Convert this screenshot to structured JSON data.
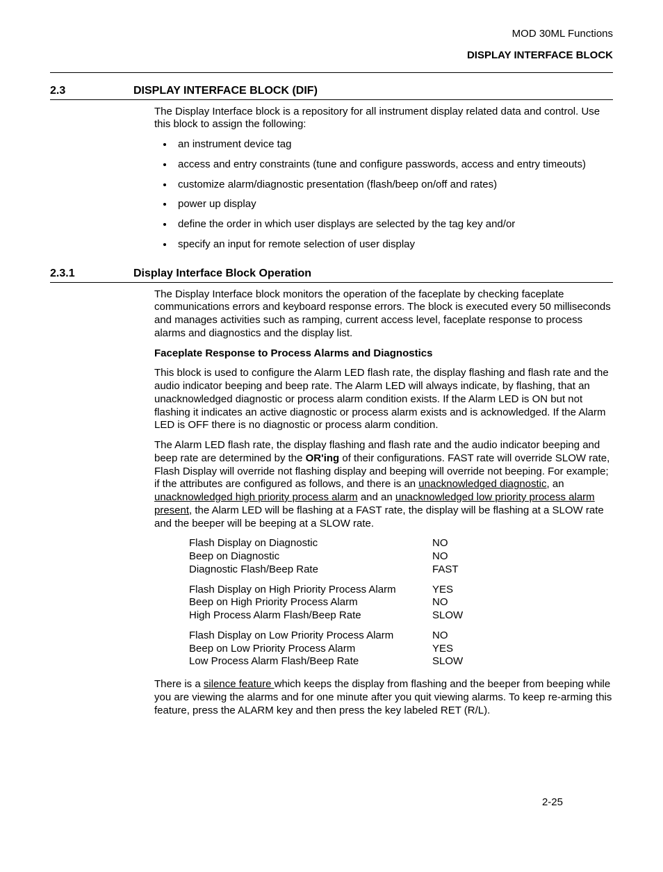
{
  "header": {
    "doc_title": "MOD 30ML Functions",
    "block_title": "DISPLAY INTERFACE BLOCK"
  },
  "section23": {
    "num": "2.3",
    "title": "DISPLAY INTERFACE BLOCK (DIF)",
    "intro": "The Display Interface block is a repository for all instrument display related data and control. Use this block to assign the following:",
    "bullets": [
      "an instrument device tag",
      "access and entry constraints (tune and configure passwords, access and entry timeouts)",
      "customize alarm/diagnostic presentation (flash/beep on/off and rates)",
      "power up display",
      "define the order in which user displays are selected by the tag key and/or",
      "specify an input for remote selection of user display"
    ]
  },
  "section231": {
    "num": "2.3.1",
    "title": "Display Interface Block Operation",
    "para1": "The Display Interface block monitors the operation of the faceplate by checking faceplate communications errors and keyboard response errors. The block is executed every 50 milliseconds and manages activities such as ramping, current access level, faceplate response to process alarms and diagnostics and the display list.",
    "sub1_title": "Faceplate Response to Process Alarms and Diagnostics",
    "sub1_p1": "This block is used to configure the Alarm LED flash rate, the display flashing and flash rate and the audio indicator beeping and beep rate. The Alarm LED will always indicate, by flashing, that an unacknowledged diagnostic or process alarm condition exists.  If the Alarm LED is ON but not flashing it indicates an active diagnostic or process alarm exists and is acknowledged. If the Alarm LED is OFF there is no diagnostic or process alarm condition.",
    "sub1_p2_a": "The Alarm LED flash rate, the display flashing and flash rate and the audio indicator beeping and beep rate are determined by the ",
    "sub1_p2_bold": "OR'ing",
    "sub1_p2_b": " of their configurations.  FAST rate will override SLOW rate, Flash Display will override not flashing display and beeping will override not beeping. For example; if the attributes are configured as follows, and there is an ",
    "sub1_p2_u1": "unacknowledged diagnostic",
    "sub1_p2_c": ", an ",
    "sub1_p2_u2": "unacknowledged high priority process alarm",
    "sub1_p2_d": " and an ",
    "sub1_p2_u3": "unacknowledged low priority process alarm present",
    "sub1_p2_e": ", the Alarm LED will be flashing at a FAST rate, the display will be flashing at a SLOW rate and the beeper will be beeping at a SLOW rate.",
    "config": [
      [
        {
          "label": "Flash Display on Diagnostic",
          "value": "NO"
        },
        {
          "label": "Beep on Diagnostic",
          "value": "NO"
        },
        {
          "label": "Diagnostic Flash/Beep Rate",
          "value": "FAST"
        }
      ],
      [
        {
          "label": "Flash Display on High Priority Process Alarm",
          "value": "YES"
        },
        {
          "label": "Beep on High Priority Process Alarm",
          "value": "NO"
        },
        {
          "label": "High Process Alarm Flash/Beep Rate",
          "value": "SLOW"
        }
      ],
      [
        {
          "label": "Flash Display on Low Priority Process Alarm",
          "value": "NO"
        },
        {
          "label": "Beep on Low Priority Process Alarm",
          "value": "YES"
        },
        {
          "label": "Low Process Alarm Flash/Beep Rate",
          "value": "SLOW"
        }
      ]
    ],
    "silence_a": "There is a ",
    "silence_u": "silence feature ",
    "silence_b": "which keeps the display from flashing and the beeper from beeping while you are viewing the alarms and for one minute after you quit viewing alarms. To keep re-arming this feature, press the ALARM key and then press the key labeled RET (R/L)."
  },
  "page_number": "2-25"
}
